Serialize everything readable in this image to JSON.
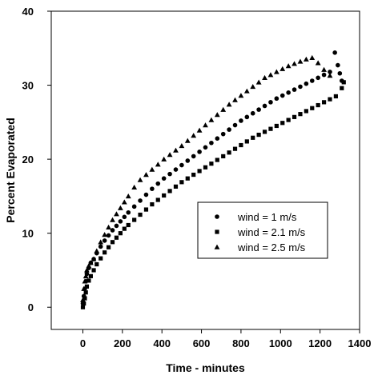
{
  "chart_data": {
    "type": "scatter",
    "title": "",
    "xlabel": "Time  - minutes",
    "ylabel": "Percent Evaporated",
    "xlim": [
      -160,
      1400
    ],
    "ylim": [
      -3,
      40
    ],
    "xticks": [
      0,
      200,
      400,
      600,
      800,
      1000,
      1200,
      1400
    ],
    "yticks": [
      0,
      10,
      20,
      30,
      40
    ],
    "xtick_labels": [
      "0",
      "200",
      "400",
      "600",
      "800",
      "1000",
      "1200",
      "1400"
    ],
    "ytick_labels": [
      "0",
      "10",
      "20",
      "30",
      "40"
    ],
    "grid": false,
    "legend_position": "center-right",
    "series": [
      {
        "name": "wind = 1 m/s",
        "marker": "circle",
        "x": [
          0,
          5,
          10,
          15,
          20,
          30,
          40,
          55,
          70,
          90,
          110,
          130,
          150,
          170,
          190,
          210,
          230,
          260,
          290,
          320,
          350,
          380,
          410,
          440,
          470,
          500,
          530,
          560,
          590,
          620,
          650,
          680,
          710,
          740,
          770,
          800,
          830,
          860,
          890,
          920,
          950,
          980,
          1010,
          1040,
          1070,
          1100,
          1130,
          1160,
          1190,
          1220,
          1250,
          1275,
          1290,
          1300,
          1310
        ],
        "y": [
          0.5,
          1.5,
          2.5,
          3.5,
          4.5,
          5.3,
          6.0,
          6.5,
          7.3,
          8.2,
          9.0,
          9.7,
          10.4,
          11.0,
          11.6,
          12.2,
          12.8,
          13.6,
          14.4,
          15.2,
          16.0,
          16.7,
          17.4,
          18.0,
          18.6,
          19.2,
          19.8,
          20.4,
          21.0,
          21.6,
          22.2,
          22.8,
          23.4,
          24.0,
          24.6,
          25.2,
          25.7,
          26.2,
          26.7,
          27.2,
          27.7,
          28.2,
          28.6,
          29.0,
          29.4,
          29.8,
          30.2,
          30.6,
          31.0,
          31.4,
          31.8,
          34.4,
          32.7,
          31.6,
          30.6
        ]
      },
      {
        "name": "wind = 2.1 m/s",
        "marker": "square",
        "x": [
          0,
          5,
          10,
          15,
          20,
          30,
          40,
          55,
          70,
          90,
          110,
          130,
          150,
          170,
          190,
          210,
          230,
          260,
          290,
          320,
          350,
          380,
          410,
          440,
          470,
          500,
          530,
          560,
          590,
          620,
          650,
          680,
          710,
          740,
          770,
          800,
          830,
          860,
          890,
          920,
          950,
          980,
          1010,
          1040,
          1070,
          1100,
          1130,
          1160,
          1190,
          1220,
          1250,
          1280,
          1310,
          1320
        ],
        "y": [
          0.0,
          0.5,
          1.2,
          2.0,
          2.8,
          3.6,
          4.2,
          5.0,
          5.8,
          6.6,
          7.4,
          8.1,
          8.8,
          9.4,
          10.0,
          10.6,
          11.1,
          11.8,
          12.5,
          13.2,
          13.9,
          14.5,
          15.1,
          15.7,
          16.3,
          16.9,
          17.4,
          17.9,
          18.4,
          18.9,
          19.4,
          19.9,
          20.4,
          20.9,
          21.4,
          21.9,
          22.4,
          22.9,
          23.3,
          23.7,
          24.1,
          24.5,
          24.9,
          25.3,
          25.7,
          26.1,
          26.5,
          26.9,
          27.3,
          27.7,
          28.1,
          28.5,
          29.6,
          30.4
        ]
      },
      {
        "name": "wind = 2.5 m/s",
        "marker": "triangle",
        "x": [
          0,
          5,
          10,
          15,
          20,
          30,
          40,
          55,
          70,
          90,
          110,
          130,
          150,
          170,
          190,
          210,
          230,
          260,
          290,
          320,
          350,
          380,
          410,
          440,
          470,
          500,
          530,
          560,
          590,
          620,
          650,
          680,
          710,
          740,
          770,
          800,
          830,
          860,
          890,
          920,
          950,
          980,
          1010,
          1040,
          1070,
          1100,
          1130,
          1160,
          1190,
          1220,
          1250
        ],
        "y": [
          1.0,
          2.5,
          3.5,
          4.2,
          5.0,
          5.6,
          6.0,
          6.5,
          7.6,
          8.8,
          9.8,
          10.8,
          11.8,
          12.6,
          13.4,
          14.2,
          15.0,
          16.2,
          17.2,
          17.9,
          18.6,
          19.3,
          20.0,
          20.6,
          21.2,
          21.8,
          22.5,
          23.2,
          23.9,
          24.6,
          25.3,
          26.0,
          26.7,
          27.4,
          28.0,
          28.6,
          29.2,
          29.8,
          30.4,
          31.0,
          31.4,
          31.8,
          32.2,
          32.6,
          32.9,
          33.2,
          33.5,
          33.7,
          33.0,
          32.1,
          31.3
        ]
      }
    ],
    "colors": {
      "marker": "#000000",
      "axis": "#000000",
      "background": "#ffffff"
    }
  }
}
